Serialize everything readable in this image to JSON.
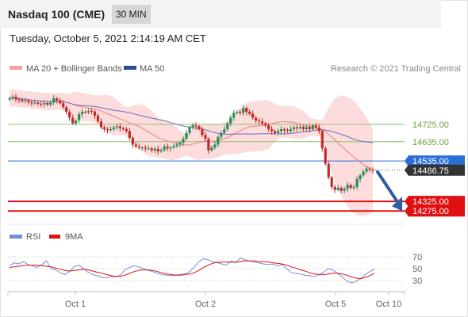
{
  "header": {
    "title": "Nasdaq 100 (CME)",
    "interval": "30 MIN",
    "datetime": "Tuesday, October 5, 2021 2:14:19 AM CET"
  },
  "legend": {
    "bollinger": "MA 20 + Bollinger Bands",
    "ma50": "MA 50",
    "credit": "Research © 2021 Trading Central",
    "rsi": "RSI",
    "rsi_ma": "9MA"
  },
  "colors": {
    "up_candle": "#2e8b57",
    "down_candle": "#c62828",
    "bollinger_band": "#fbd0d0",
    "bollinger_line": "#f08080",
    "ma50": "#6a6ec2",
    "resistance": "#8dc26a",
    "pivot": "#2b6fd6",
    "support": "#e01010",
    "price": "#333333",
    "arrow": "#2c5fa3",
    "rsi": "#6f8fd8",
    "rsi_ma": "#e01010"
  },
  "chart_data": [
    {
      "type": "line",
      "title": "Nasdaq 100 (CME)",
      "interval": "30 MIN",
      "x_ticks": [
        "Oct 1",
        "Oct 2",
        "Oct 5",
        "Oct 10"
      ],
      "ylim": [
        14210,
        14980
      ],
      "levels": [
        {
          "label": "14725.00",
          "value": 14725,
          "kind": "resistance"
        },
        {
          "label": "14635.00",
          "value": 14635,
          "kind": "resistance"
        },
        {
          "label": "14535.00",
          "value": 14535,
          "kind": "pivot"
        },
        {
          "label": "14325.00",
          "value": 14325,
          "kind": "support"
        },
        {
          "label": "14275.00",
          "value": 14275,
          "kind": "support"
        }
      ],
      "last_price": {
        "label": "14486.75",
        "value": 14486.75
      },
      "forecast_arrow": {
        "from": 14486.75,
        "to": 14275
      },
      "series": [
        {
          "name": "MA 20 + Bollinger Bands",
          "kind": "bollinger"
        },
        {
          "name": "MA 50",
          "kind": "ma50"
        }
      ],
      "ohlc_close": [
        14860,
        14868,
        14855,
        14852,
        14845,
        14848,
        14840,
        14835,
        14838,
        14832,
        14830,
        14836,
        14828,
        14838,
        14860,
        14850,
        14835,
        14815,
        14790,
        14760,
        14730,
        14745,
        14778,
        14790,
        14788,
        14795,
        14792,
        14770,
        14740,
        14710,
        14700,
        14695,
        14700,
        14710,
        14715,
        14705,
        14700,
        14690,
        14655,
        14620,
        14610,
        14605,
        14605,
        14600,
        14600,
        14590,
        14598,
        14585,
        14592,
        14610,
        14600,
        14605,
        14612,
        14620,
        14630,
        14650,
        14680,
        14710,
        14720,
        14715,
        14700,
        14670,
        14650,
        14590,
        14605,
        14620,
        14660,
        14680,
        14700,
        14730,
        14760,
        14785,
        14790,
        14785,
        14810,
        14790,
        14780,
        14760,
        14745,
        14740,
        14730,
        14720,
        14700,
        14690,
        14680,
        14690,
        14700,
        14695,
        14690,
        14700,
        14710,
        14705,
        14712,
        14700,
        14710,
        14700,
        14720,
        14710,
        14690,
        14600,
        14520,
        14450,
        14400,
        14385,
        14395,
        14380,
        14390,
        14410,
        14395,
        14400,
        14440,
        14460,
        14480,
        14495,
        14490,
        14486.75
      ]
    },
    {
      "type": "line",
      "title": "RSI",
      "yticks": [
        70,
        50,
        30
      ],
      "ylim": [
        15,
        85
      ],
      "series": [
        {
          "name": "RSI",
          "values": [
            55,
            60,
            58,
            62,
            57,
            55,
            52,
            57,
            63,
            50,
            48,
            43,
            40,
            45,
            53,
            56,
            50,
            44,
            40,
            38,
            35,
            34,
            37,
            36,
            39,
            48,
            52,
            55,
            53,
            50,
            47,
            45,
            42,
            40,
            39,
            38,
            39,
            40,
            41,
            45,
            53,
            62,
            67,
            65,
            62,
            60,
            58,
            56,
            63,
            60,
            68,
            65,
            63,
            61,
            60,
            58,
            57,
            58,
            55,
            57,
            50,
            43,
            42,
            41,
            39,
            38,
            36,
            40,
            44,
            50,
            48,
            42,
            36,
            29,
            26,
            28,
            33,
            40,
            45,
            49
          ]
        },
        {
          "name": "9MA",
          "values": [
            52,
            53,
            54,
            55,
            56,
            56,
            56,
            55,
            54,
            53,
            51,
            49,
            47,
            46,
            47,
            48,
            49,
            48,
            46,
            44,
            42,
            40,
            38,
            37,
            37,
            39,
            42,
            45,
            47,
            48,
            48,
            47,
            45,
            43,
            41,
            40,
            39,
            39,
            40,
            41,
            43,
            47,
            52,
            56,
            59,
            61,
            61,
            61,
            61,
            61,
            62,
            63,
            63,
            63,
            62,
            62,
            61,
            60,
            59,
            58,
            56,
            53,
            51,
            48,
            46,
            43,
            41,
            40,
            40,
            41,
            42,
            42,
            41,
            39,
            36,
            34,
            33,
            35,
            38,
            42
          ]
        }
      ]
    }
  ]
}
